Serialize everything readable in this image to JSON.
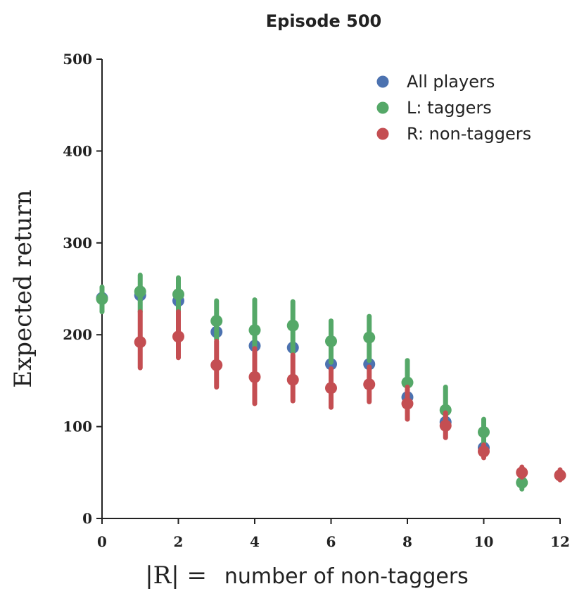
{
  "chart_data": {
    "type": "scatter",
    "title": "Episode 500",
    "xlabel_prefix": "|R| =",
    "xlabel_text": "number of non-taggers",
    "ylabel": "Expected return",
    "xlim": [
      0,
      12
    ],
    "ylim": [
      0,
      500
    ],
    "x_ticks": [
      0,
      2,
      4,
      6,
      8,
      10,
      12
    ],
    "y_ticks": [
      0,
      100,
      200,
      300,
      400,
      500
    ],
    "grid": false,
    "legend_position": "top-right",
    "series": [
      {
        "name": "All players",
        "color": "#4c72b0",
        "points": [
          {
            "x": 0,
            "y": 240,
            "lo": 240,
            "hi": 240
          },
          {
            "x": 1,
            "y": 243,
            "lo": 243,
            "hi": 243
          },
          {
            "x": 2,
            "y": 237,
            "lo": 237,
            "hi": 237
          },
          {
            "x": 3,
            "y": 203,
            "lo": 203,
            "hi": 203
          },
          {
            "x": 4,
            "y": 188,
            "lo": 188,
            "hi": 188
          },
          {
            "x": 5,
            "y": 186,
            "lo": 186,
            "hi": 186
          },
          {
            "x": 6,
            "y": 168,
            "lo": 168,
            "hi": 168
          },
          {
            "x": 7,
            "y": 168,
            "lo": 168,
            "hi": 168
          },
          {
            "x": 8,
            "y": 132,
            "lo": 132,
            "hi": 132
          },
          {
            "x": 9,
            "y": 105,
            "lo": 105,
            "hi": 105
          },
          {
            "x": 10,
            "y": 77,
            "lo": 77,
            "hi": 77
          }
        ]
      },
      {
        "name": "L: taggers",
        "color": "#55a868",
        "points": [
          {
            "x": 0,
            "y": 239,
            "lo": 225,
            "hi": 252
          },
          {
            "x": 1,
            "y": 247,
            "lo": 225,
            "hi": 265
          },
          {
            "x": 2,
            "y": 244,
            "lo": 225,
            "hi": 262
          },
          {
            "x": 3,
            "y": 215,
            "lo": 195,
            "hi": 237
          },
          {
            "x": 4,
            "y": 205,
            "lo": 175,
            "hi": 238
          },
          {
            "x": 5,
            "y": 210,
            "lo": 180,
            "hi": 236
          },
          {
            "x": 6,
            "y": 193,
            "lo": 170,
            "hi": 215
          },
          {
            "x": 7,
            "y": 197,
            "lo": 172,
            "hi": 220
          },
          {
            "x": 8,
            "y": 148,
            "lo": 125,
            "hi": 172
          },
          {
            "x": 9,
            "y": 118,
            "lo": 95,
            "hi": 143
          },
          {
            "x": 10,
            "y": 94,
            "lo": 80,
            "hi": 108
          },
          {
            "x": 11,
            "y": 39,
            "lo": 32,
            "hi": 46
          }
        ]
      },
      {
        "name": "R: non-taggers",
        "color": "#c44e52",
        "points": [
          {
            "x": 1,
            "y": 192,
            "lo": 164,
            "hi": 225
          },
          {
            "x": 2,
            "y": 198,
            "lo": 175,
            "hi": 225
          },
          {
            "x": 3,
            "y": 167,
            "lo": 143,
            "hi": 193
          },
          {
            "x": 4,
            "y": 154,
            "lo": 125,
            "hi": 185
          },
          {
            "x": 5,
            "y": 151,
            "lo": 128,
            "hi": 178
          },
          {
            "x": 6,
            "y": 142,
            "lo": 121,
            "hi": 163
          },
          {
            "x": 7,
            "y": 146,
            "lo": 127,
            "hi": 165
          },
          {
            "x": 8,
            "y": 125,
            "lo": 108,
            "hi": 143
          },
          {
            "x": 9,
            "y": 101,
            "lo": 88,
            "hi": 115
          },
          {
            "x": 10,
            "y": 73,
            "lo": 66,
            "hi": 80
          },
          {
            "x": 11,
            "y": 50,
            "lo": 45,
            "hi": 56
          },
          {
            "x": 12,
            "y": 47,
            "lo": 42,
            "hi": 53
          }
        ]
      }
    ]
  }
}
